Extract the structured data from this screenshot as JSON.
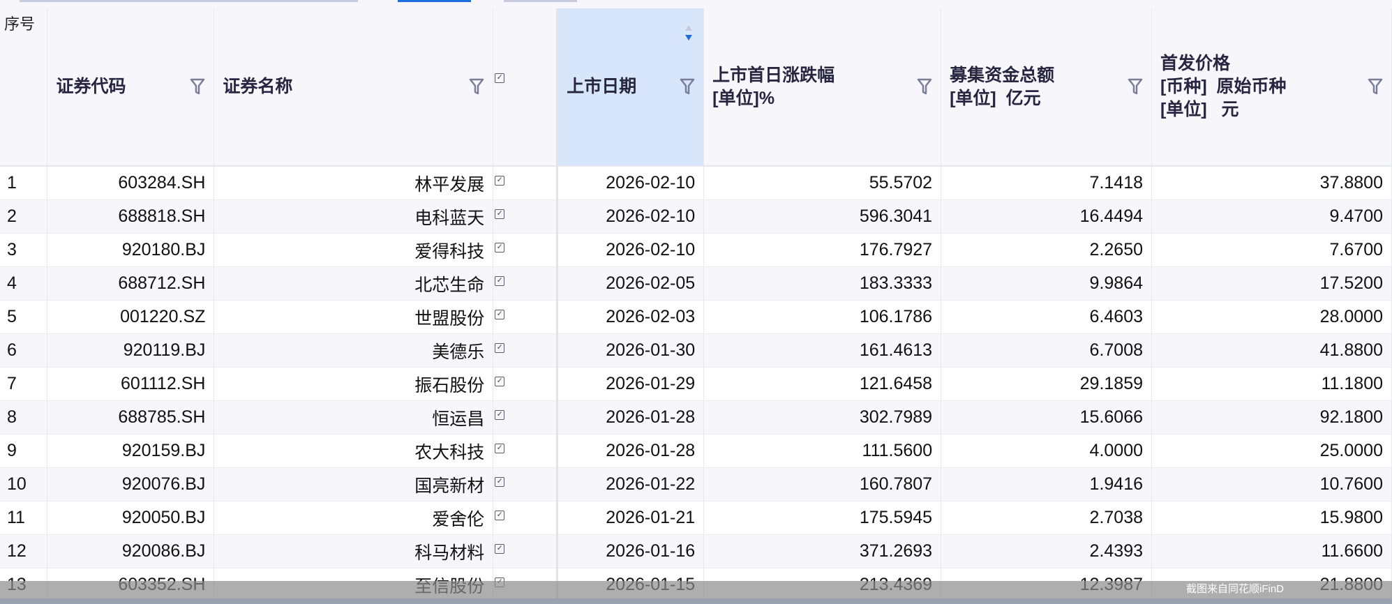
{
  "headers": {
    "index": "序号",
    "code": "证券代码",
    "name": "证券名称",
    "date": "上市日期",
    "first_day_change": "上市首日涨跌幅\n[单位]%",
    "raised_funds": "募集资金总额\n[单位]  亿元",
    "ipo_price": "首发价格\n[币种]  原始币种\n[单位]   元"
  },
  "sort": {
    "column": "date",
    "direction": "descending"
  },
  "colors": {
    "sorted_header": "#d8e6fb",
    "sort_active": "#1f6fe0",
    "header_text": "#262640"
  },
  "rows": [
    {
      "index": "1",
      "code": "603284.SH",
      "name": "林平发展",
      "date": "2026-02-10",
      "change": "55.5702",
      "funds": "7.1418",
      "price": "37.8800"
    },
    {
      "index": "2",
      "code": "688818.SH",
      "name": "电科蓝天",
      "date": "2026-02-10",
      "change": "596.3041",
      "funds": "16.4494",
      "price": "9.4700"
    },
    {
      "index": "3",
      "code": "920180.BJ",
      "name": "爱得科技",
      "date": "2026-02-10",
      "change": "176.7927",
      "funds": "2.2650",
      "price": "7.6700"
    },
    {
      "index": "4",
      "code": "688712.SH",
      "name": "北芯生命",
      "date": "2026-02-05",
      "change": "183.3333",
      "funds": "9.9864",
      "price": "17.5200"
    },
    {
      "index": "5",
      "code": "001220.SZ",
      "name": "世盟股份",
      "date": "2026-02-03",
      "change": "106.1786",
      "funds": "6.4603",
      "price": "28.0000"
    },
    {
      "index": "6",
      "code": "920119.BJ",
      "name": "美德乐",
      "date": "2026-01-30",
      "change": "161.4613",
      "funds": "6.7008",
      "price": "41.8800"
    },
    {
      "index": "7",
      "code": "601112.SH",
      "name": "振石股份",
      "date": "2026-01-29",
      "change": "121.6458",
      "funds": "29.1859",
      "price": "11.1800"
    },
    {
      "index": "8",
      "code": "688785.SH",
      "name": "恒运昌",
      "date": "2026-01-28",
      "change": "302.7989",
      "funds": "15.6066",
      "price": "92.1800"
    },
    {
      "index": "9",
      "code": "920159.BJ",
      "name": "农大科技",
      "date": "2026-01-28",
      "change": "111.5600",
      "funds": "4.0000",
      "price": "25.0000"
    },
    {
      "index": "10",
      "code": "920076.BJ",
      "name": "国亮新材",
      "date": "2026-01-22",
      "change": "160.7807",
      "funds": "1.9416",
      "price": "10.7600"
    },
    {
      "index": "11",
      "code": "920050.BJ",
      "name": "爱舍伦",
      "date": "2026-01-21",
      "change": "175.5945",
      "funds": "2.7038",
      "price": "15.9800"
    },
    {
      "index": "12",
      "code": "920086.BJ",
      "name": "科马材料",
      "date": "2026-01-16",
      "change": "371.2693",
      "funds": "2.4393",
      "price": "11.6600"
    },
    {
      "index": "13",
      "code": "603352.SH",
      "name": "至信股份",
      "date": "2026-01-15",
      "change": "213.4369",
      "funds": "12.3987",
      "price": "21.8800"
    }
  ],
  "watermark": "截图来自同花顺iFinD"
}
